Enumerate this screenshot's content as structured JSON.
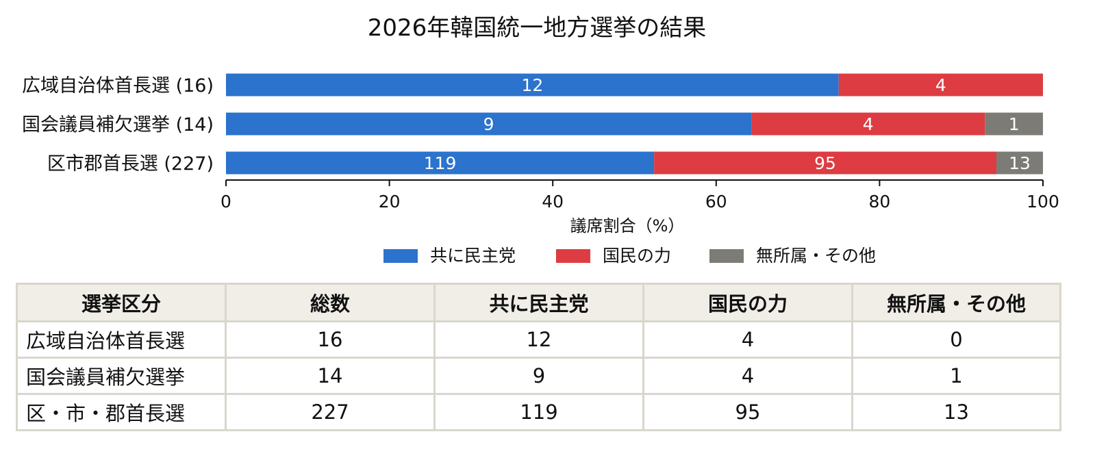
{
  "colors": {
    "democratic": "#2b73cc",
    "ppp": "#dd3c42",
    "other": "#7d7b76",
    "axis": "#111111",
    "table_border": "#d9d6cc",
    "table_header_bg": "#f0eee7"
  },
  "chart_data": {
    "type": "bar",
    "orientation": "horizontal",
    "stacked": true,
    "title": "2026年韓国統一地方選挙の結果",
    "xlabel": "議席割合（%）",
    "xlim": [
      0,
      100
    ],
    "xticks": [
      0,
      20,
      40,
      60,
      80,
      100
    ],
    "grid": false,
    "legend_position": "bottom",
    "categories": [
      "広域自治体首長選 (16)",
      "国会議員補欠選挙 (14)",
      "区市郡首長選 (227)"
    ],
    "series": [
      {
        "name": "共に民主党",
        "color": "#2b73cc",
        "seats": [
          12,
          9,
          119
        ],
        "percent": [
          75.0,
          64.3,
          52.4
        ]
      },
      {
        "name": "国民の力",
        "color": "#dd3c42",
        "seats": [
          4,
          4,
          95
        ],
        "percent": [
          25.0,
          28.6,
          41.9
        ]
      },
      {
        "name": "無所属・その他",
        "color": "#7d7b76",
        "seats": [
          0,
          1,
          13
        ],
        "percent": [
          0.0,
          7.1,
          5.7
        ]
      }
    ]
  },
  "table": {
    "headers": [
      "選挙区分",
      "総数",
      "共に民主党",
      "国民の力",
      "無所属・その他"
    ],
    "rows": [
      [
        "広域自治体首長選",
        "16",
        "12",
        "4",
        "0"
      ],
      [
        "国会議員補欠選挙",
        "14",
        "9",
        "4",
        "1"
      ],
      [
        "区・市・郡首長選",
        "227",
        "119",
        "95",
        "13"
      ]
    ]
  }
}
